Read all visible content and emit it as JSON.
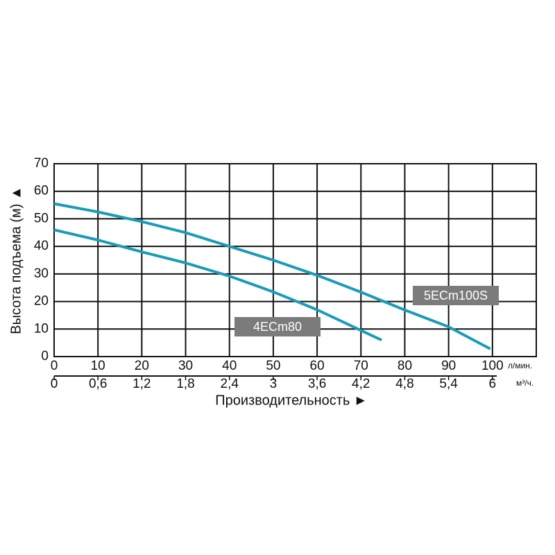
{
  "chart_data": {
    "type": "line",
    "y_label": "Высота подъема (м) ▲",
    "x_label": "Производительность ►",
    "x_unit": "л/мин.",
    "x2_unit": "м³/ч.",
    "xlim": [
      0,
      110
    ],
    "xticks": [
      0,
      10,
      20,
      30,
      40,
      50,
      60,
      70,
      80,
      90,
      100
    ],
    "x2lim": [
      0,
      6.6
    ],
    "x2ticks": [
      0,
      {
        "value": 0.6,
        "label": "0,6"
      },
      {
        "value": 1.2,
        "label": "1,2"
      },
      {
        "value": 1.8,
        "label": "1,8"
      },
      {
        "value": 2.4,
        "label": "2,4"
      },
      3,
      {
        "value": 3.6,
        "label": "3,6"
      },
      {
        "value": 4.2,
        "label": "4,2"
      },
      {
        "value": 4.8,
        "label": "4,8"
      },
      {
        "value": 5.4,
        "label": "5,4"
      },
      6
    ],
    "ylim": [
      0,
      70
    ],
    "yticks": [
      0,
      10,
      20,
      30,
      40,
      50,
      60,
      70
    ],
    "grid": true,
    "series": [
      {
        "name": "5ECm100S",
        "color": "#1a9cb8",
        "x": [
          0,
          10,
          20,
          30,
          40,
          50,
          60,
          70,
          80,
          90,
          99.5
        ],
        "values": [
          55.5,
          52.5,
          49,
          45,
          40,
          35,
          29.5,
          23.4,
          16.9,
          10.8,
          2.8
        ]
      },
      {
        "name": "4ECm80",
        "color": "#1a9cb8",
        "x": [
          0,
          10,
          20,
          30,
          40,
          50,
          60,
          70,
          74.7
        ],
        "values": [
          46,
          42.3,
          38,
          34,
          29.2,
          23.5,
          17,
          9.5,
          6
        ]
      }
    ]
  }
}
